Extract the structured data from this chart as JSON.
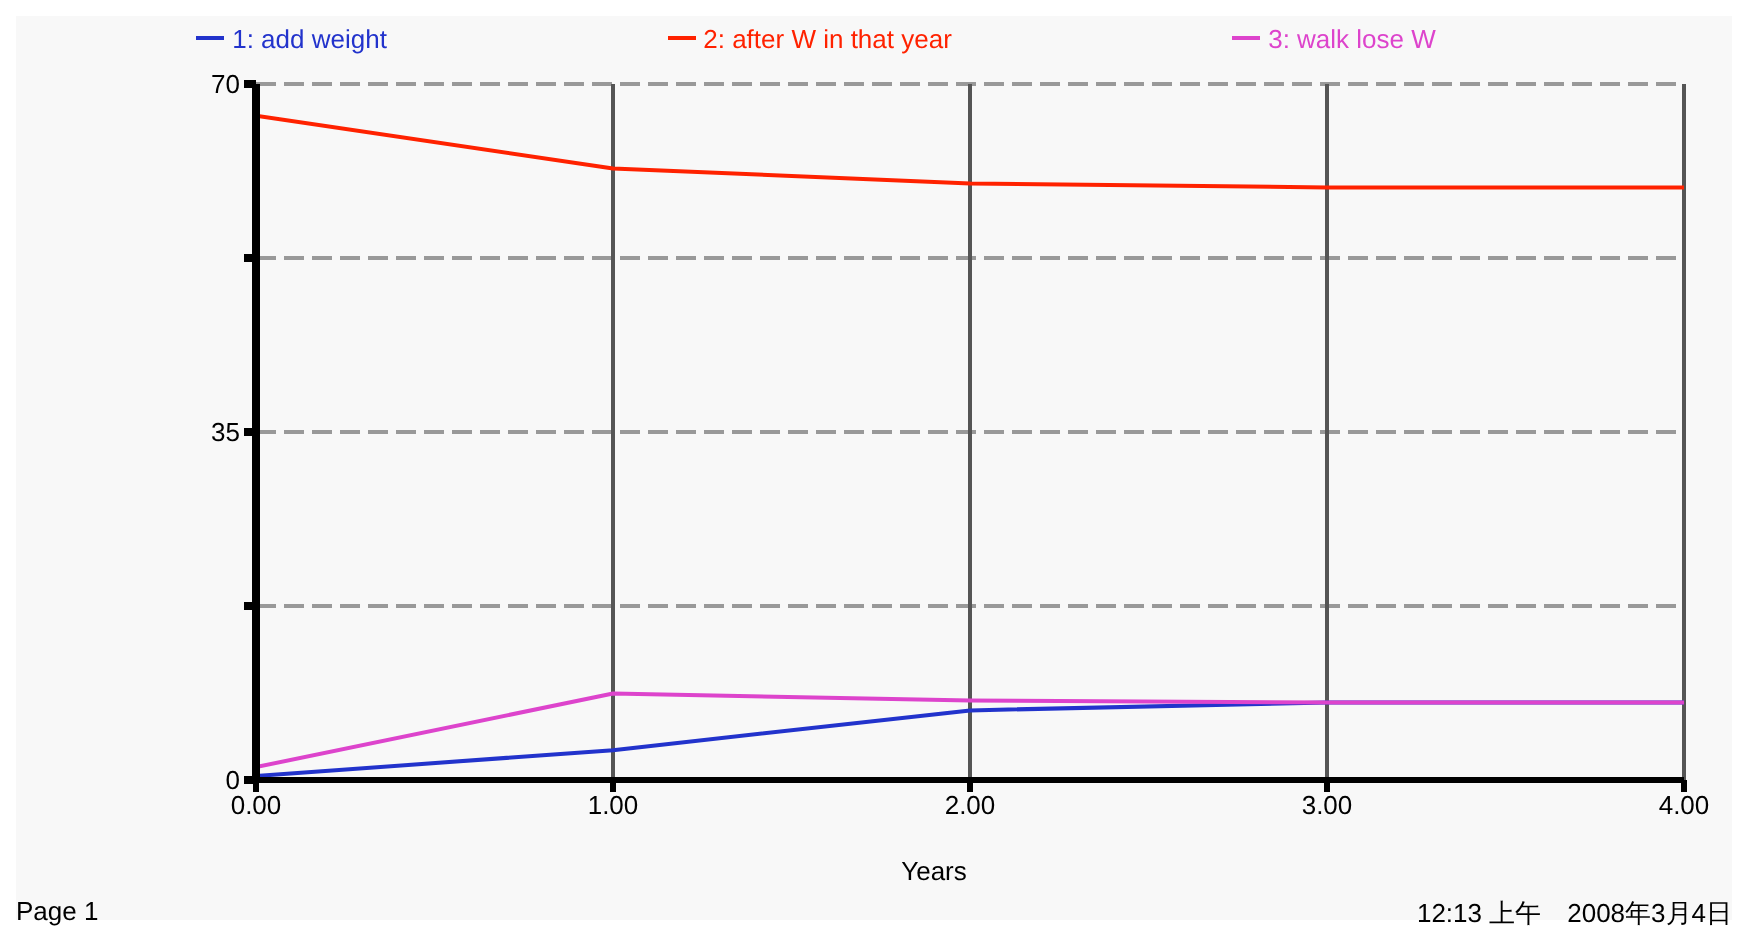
{
  "chart_data": {
    "type": "line",
    "xlabel": "Years",
    "legend": "top",
    "grid": true,
    "marker": "none",
    "line_style": "solid",
    "x": [
      0,
      1,
      2,
      3,
      4
    ],
    "xlim": [
      0,
      4
    ],
    "xticks": [
      {
        "value": 0,
        "label": "0.00"
      },
      {
        "value": 1,
        "label": "1.00"
      },
      {
        "value": 2,
        "label": "2.00"
      },
      {
        "value": 3,
        "label": "3.00"
      },
      {
        "value": 4,
        "label": "4.00"
      }
    ],
    "ylim": [
      0,
      70
    ],
    "yticks": [
      0,
      {
        "value": 17.5,
        "label": null
      },
      35,
      {
        "value": 52.5,
        "label": null
      },
      70
    ],
    "series": [
      {
        "name": "1: add weight",
        "color": "#2233cc",
        "values": [
          0.4,
          3.0,
          7.0,
          7.8,
          7.8
        ]
      },
      {
        "name": "2: after W in that year",
        "color": "#ff2200",
        "values": [
          66.8,
          61.5,
          60.0,
          59.6,
          59.6
        ]
      },
      {
        "name": "3: walk lose W",
        "color": "#dd44cc",
        "values": [
          1.3,
          8.7,
          8.0,
          7.8,
          7.8
        ]
      }
    ],
    "annotations": [
      "Page 1",
      "12:13 上午　2008年3月4日"
    ]
  }
}
